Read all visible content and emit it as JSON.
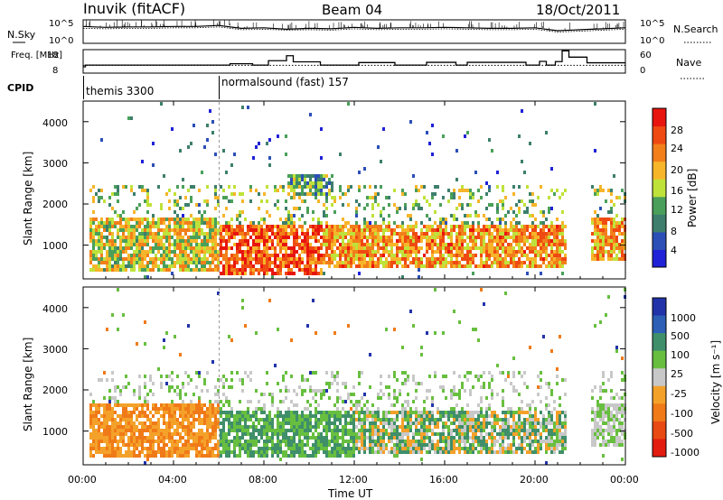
{
  "header": {
    "radar": "Inuvik (fitACF)",
    "beam": "Beam 04",
    "date": "18/Oct/2011"
  },
  "colors": {
    "power_scale": [
      "#1f22d6",
      "#2c4fb7",
      "#3d7f6c",
      "#4aa05a",
      "#bfe23a",
      "#f7b52a",
      "#f27f1a",
      "#ef4a12",
      "#e8150f"
    ],
    "velocity_scale": [
      "#2233aa",
      "#2c5fb5",
      "#3f8f6a",
      "#68bf3f",
      "#c8c8c8",
      "#f4a12a",
      "#f07a18",
      "#e94a14",
      "#e31c10"
    ]
  },
  "chart_data": [
    {
      "type": "line",
      "panel": "noise",
      "ylabel_left": "N.Sky",
      "ylabel_right": "N.Search",
      "left_ticks": [
        "10^5",
        "10^0"
      ],
      "right_ticks": [
        "10^5",
        "10^0"
      ],
      "xlim": [
        0,
        24
      ],
      "series": [
        {
          "name": "N.Sky",
          "x": [
            0,
            1,
            2,
            3,
            4,
            5,
            6,
            7,
            8,
            9,
            10,
            11,
            12,
            13,
            14,
            15,
            16,
            17,
            18,
            19,
            20,
            21,
            22,
            23,
            24
          ],
          "values": [
            3.6,
            3.4,
            3.5,
            3.5,
            3.6,
            3.6,
            3.8,
            3.2,
            3.3,
            3.0,
            3.2,
            3.1,
            3.4,
            3.2,
            3.3,
            3.3,
            3.4,
            3.3,
            3.2,
            3.2,
            3.3,
            2.7,
            2.9,
            3.1,
            3.3
          ]
        },
        {
          "name": "N.Search",
          "x": [
            0,
            1,
            2,
            3,
            4,
            5,
            6,
            7,
            8,
            9,
            10,
            11,
            12,
            13,
            14,
            15,
            16,
            17,
            18,
            19,
            20,
            21,
            22,
            23,
            24
          ],
          "values": [
            3.2,
            3.1,
            3.2,
            3.2,
            3.3,
            3.3,
            3.5,
            2.9,
            3.0,
            2.8,
            2.9,
            2.8,
            3.1,
            2.9,
            3.0,
            3.0,
            3.1,
            3.0,
            2.9,
            2.9,
            3.0,
            2.4,
            2.6,
            2.8,
            3.0
          ]
        }
      ]
    },
    {
      "type": "line",
      "panel": "frequency",
      "ylabel_left": "Freq. [MHz]",
      "ylabel_right": "Nave",
      "left_ticks": [
        "18",
        "8"
      ],
      "right_ticks": [
        "60",
        "0"
      ],
      "xlim": [
        0,
        24
      ],
      "series": [
        {
          "name": "Freq.",
          "x": [
            0,
            0.1,
            6.0,
            6.5,
            7.5,
            8.2,
            9.0,
            9.3,
            10.5,
            12.2,
            13.8,
            15.2,
            16.5,
            17.0,
            19.6,
            20.2,
            20.5,
            20.9,
            21.2,
            21.5,
            22.3,
            24
          ],
          "values": [
            10.7,
            11.4,
            11.4,
            12.0,
            11.4,
            13.3,
            15.4,
            12.8,
            11.4,
            12.5,
            11.4,
            12.6,
            11.4,
            12.6,
            11.4,
            13.0,
            11.4,
            12.9,
            17.5,
            14.8,
            12.4,
            12.4
          ]
        },
        {
          "name": "Nave",
          "x": [
            0,
            24
          ],
          "values": [
            20,
            20
          ]
        }
      ]
    },
    {
      "type": "table",
      "panel": "cpid",
      "label": "CPID",
      "segments": [
        {
          "start": 0,
          "end": 6,
          "name": "themis 3300"
        },
        {
          "start": 6,
          "end": 24,
          "name": "normalsound (fast) 157"
        }
      ]
    },
    {
      "type": "heatmap",
      "panel": "power",
      "ylabel": "Slant Range [km]",
      "yticks": [
        "1000",
        "2000",
        "3000",
        "4000"
      ],
      "ylim": [
        180,
        4500
      ],
      "xlim": [
        0,
        24
      ],
      "colorbar_label": "Power [dB]",
      "colorbar_ticks": [
        "4",
        "8",
        "12",
        "16",
        "20",
        "24",
        "28"
      ],
      "gap_hours": [
        [
          21.3,
          22.4
        ]
      ],
      "features": [
        {
          "t0": 0.0,
          "t1": 6.0,
          "r0": 400,
          "r1": 1700,
          "level": "high"
        },
        {
          "t0": 6.0,
          "t1": 10.5,
          "r0": 300,
          "r1": 1500,
          "level": "very high"
        },
        {
          "t0": 10.5,
          "t1": 21.3,
          "r0": 500,
          "r1": 1500,
          "level": "high"
        },
        {
          "t0": 9.0,
          "t1": 11.0,
          "r0": 2200,
          "r1": 2800,
          "level": "medium"
        },
        {
          "t0": 22.4,
          "t1": 24.0,
          "r0": 700,
          "r1": 1700,
          "level": "high"
        }
      ]
    },
    {
      "type": "heatmap",
      "panel": "velocity",
      "ylabel": "Slant Range [km]",
      "yticks": [
        "1000",
        "2000",
        "3000",
        "4000"
      ],
      "ylim": [
        180,
        4500
      ],
      "xlim": [
        0,
        24
      ],
      "colorbar_label": "Velocity [m s⁻¹]",
      "colorbar_ticks": [
        "1000",
        "500",
        "100",
        "25",
        "-25",
        "-100",
        "-500",
        "-1000"
      ],
      "gap_hours": [
        [
          21.3,
          22.4
        ]
      ],
      "features": [
        {
          "t0": 0.0,
          "t1": 6.0,
          "r0": 400,
          "r1": 1700,
          "level": "negative"
        },
        {
          "t0": 6.0,
          "t1": 12.0,
          "r0": 400,
          "r1": 1500,
          "level": "positive"
        },
        {
          "t0": 12.0,
          "t1": 21.3,
          "r0": 500,
          "r1": 1500,
          "level": "mixed"
        },
        {
          "t0": 22.4,
          "t1": 24.0,
          "r0": 700,
          "r1": 1700,
          "level": "near zero"
        }
      ]
    }
  ],
  "x_axis": {
    "ticks": [
      "00:00",
      "04:00",
      "08:00",
      "12:00",
      "16:00",
      "20:00",
      "00:00"
    ],
    "label": "Time UT"
  }
}
